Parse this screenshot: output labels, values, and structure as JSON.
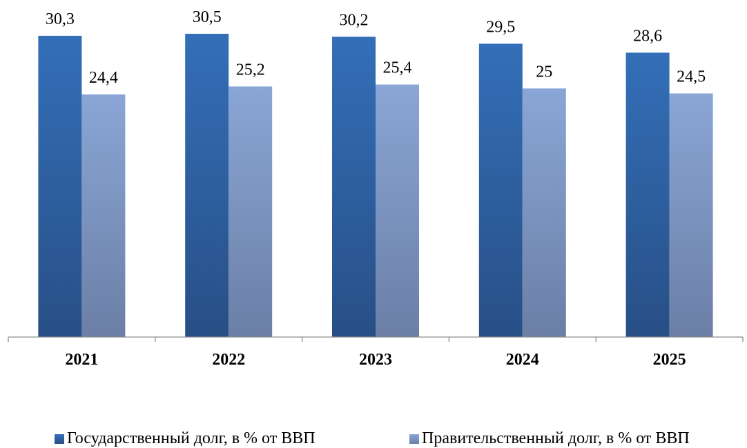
{
  "chart_data": {
    "type": "bar",
    "categories": [
      "2021",
      "2022",
      "2023",
      "2024",
      "2025"
    ],
    "series": [
      {
        "name": "Государственный долг, в % от ВВП",
        "values": [
          30.3,
          30.5,
          30.2,
          29.5,
          28.6
        ],
        "labels": [
          "30,3",
          "30,5",
          "30,2",
          "29,5",
          "28,6"
        ],
        "color": "#2e5c9a"
      },
      {
        "name": "Правительственный долг, в % от ВВП",
        "values": [
          24.4,
          25.2,
          25.4,
          25,
          24.5
        ],
        "labels": [
          "24,4",
          "25,2",
          "25,4",
          "25",
          "24,5"
        ],
        "color": "#7c94bf"
      }
    ],
    "title": "",
    "xlabel": "",
    "ylabel": "",
    "ylim": [
      0,
      30.5
    ],
    "grid": false,
    "legend": "bottom"
  }
}
